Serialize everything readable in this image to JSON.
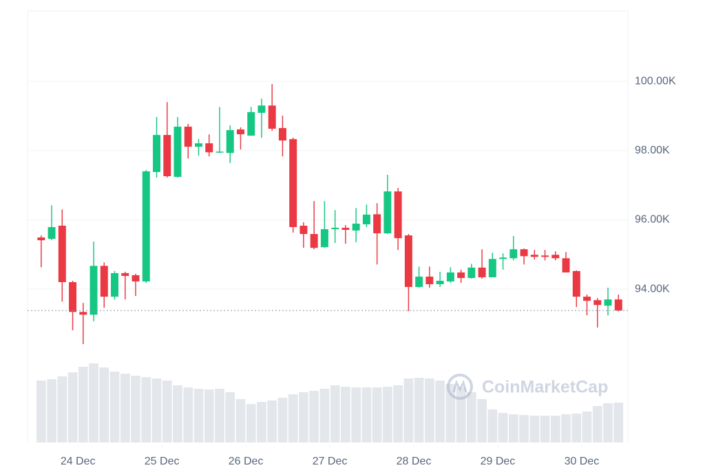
{
  "chart_data": {
    "type": "candlestick",
    "watermark": "CoinMarketCap",
    "xlim": [
      23.4,
      30.55
    ],
    "xticks": [
      {
        "value": 24,
        "label": "24 Dec"
      },
      {
        "value": 25,
        "label": "25 Dec"
      },
      {
        "value": 26,
        "label": "26 Dec"
      },
      {
        "value": 27,
        "label": "27 Dec"
      },
      {
        "value": 28,
        "label": "28 Dec"
      },
      {
        "value": 29,
        "label": "29 Dec"
      },
      {
        "value": 30,
        "label": "30 Dec"
      }
    ],
    "ylim": [
      89530,
      102030
    ],
    "yticks": [
      {
        "value": 94000,
        "label": "94.00K"
      },
      {
        "value": 96000,
        "label": "96.00K"
      },
      {
        "value": 98000,
        "label": "98.00K"
      },
      {
        "value": 100000,
        "label": "100.00K"
      }
    ],
    "grid": true,
    "up_color": "#16c784",
    "down_color": "#ea3943",
    "volume_color": "#e3e6eb",
    "volume_lim": [
      0,
      150
    ],
    "x": [
      23.5625,
      23.6875,
      23.8125,
      23.9375,
      24.0625,
      24.1875,
      24.3125,
      24.4375,
      24.5625,
      24.6875,
      24.8125,
      24.9375,
      25.0625,
      25.1875,
      25.3125,
      25.4375,
      25.5625,
      25.6875,
      25.8125,
      25.9375,
      26.0625,
      26.1875,
      26.3125,
      26.4375,
      26.5625,
      26.6875,
      26.8125,
      26.9375,
      27.0625,
      27.1875,
      27.3125,
      27.4375,
      27.5625,
      27.6875,
      27.8125,
      27.9375,
      28.0625,
      28.1875,
      28.3125,
      28.4375,
      28.5625,
      28.6875,
      28.8125,
      28.9375,
      29.0625,
      29.1875,
      29.3125,
      29.4375,
      29.5625,
      29.6875,
      29.8125,
      29.9375,
      30.0625,
      30.1875,
      30.3125,
      30.4375
    ],
    "open": [
      95490,
      95450,
      95830,
      94200,
      93340,
      93260,
      94670,
      93780,
      94460,
      94400,
      94220,
      97380,
      98450,
      97240,
      98690,
      98110,
      98210,
      97950,
      97930,
      98610,
      98430,
      99090,
      99300,
      98650,
      98330,
      95830,
      95590,
      95210,
      95730,
      95770,
      95690,
      95870,
      96160,
      95610,
      96820,
      95550,
      94060,
      94360,
      94140,
      94220,
      94480,
      94320,
      94620,
      94340,
      94870,
      94890,
      95150,
      94990,
      94970,
      94990,
      94890,
      94520,
      93780,
      93680,
      93520,
      93700
    ],
    "high": [
      95550,
      96420,
      96300,
      94240,
      93600,
      95370,
      94770,
      94520,
      94500,
      94440,
      97440,
      98970,
      99400,
      98970,
      98770,
      98330,
      98470,
      99260,
      98730,
      98670,
      99260,
      99500,
      99920,
      99010,
      98370,
      95930,
      96540,
      96540,
      96280,
      95850,
      96340,
      96440,
      96480,
      97300,
      96920,
      95590,
      94650,
      94650,
      94500,
      94630,
      94560,
      94730,
      95150,
      95050,
      95030,
      95530,
      95170,
      95130,
      95130,
      95090,
      95070,
      94540,
      93840,
      93740,
      94040,
      93840
    ],
    "low": [
      94630,
      95410,
      93640,
      92810,
      92410,
      93070,
      93460,
      93700,
      93700,
      93800,
      94180,
      97220,
      97220,
      97220,
      97770,
      97850,
      97830,
      97930,
      97640,
      98030,
      98430,
      98370,
      98570,
      97830,
      95630,
      95190,
      95150,
      95190,
      95330,
      95310,
      95350,
      95790,
      94710,
      95590,
      95130,
      93360,
      94040,
      94040,
      94060,
      94180,
      94180,
      94300,
      94300,
      94340,
      94560,
      94830,
      94710,
      94850,
      94830,
      94830,
      94480,
      93480,
      93240,
      92890,
      93240,
      93360
    ],
    "close": [
      95410,
      95790,
      94200,
      93340,
      93260,
      94670,
      93780,
      94460,
      94380,
      94220,
      97400,
      98450,
      97260,
      98690,
      98110,
      98210,
      97950,
      97970,
      98590,
      98470,
      99110,
      99300,
      98630,
      98290,
      95790,
      95590,
      95190,
      95730,
      95770,
      95710,
      95890,
      96150,
      95610,
      96820,
      95470,
      94060,
      94360,
      94140,
      94240,
      94480,
      94320,
      94620,
      94340,
      94870,
      94910,
      95150,
      94950,
      94930,
      94930,
      94890,
      94480,
      93780,
      93660,
      93540,
      93700,
      93380
    ],
    "volume": [
      90,
      92,
      96,
      102,
      110,
      115,
      109,
      103,
      100,
      97,
      95,
      93,
      90,
      83,
      80,
      78,
      77,
      78,
      73,
      63,
      56,
      59,
      61,
      65,
      70,
      73,
      75,
      78,
      83,
      81,
      80,
      80,
      80,
      81,
      83,
      93,
      94,
      93,
      90,
      85,
      80,
      73,
      63,
      48,
      43,
      41,
      40,
      39,
      39,
      39,
      41,
      42,
      45,
      53,
      57,
      58
    ]
  }
}
